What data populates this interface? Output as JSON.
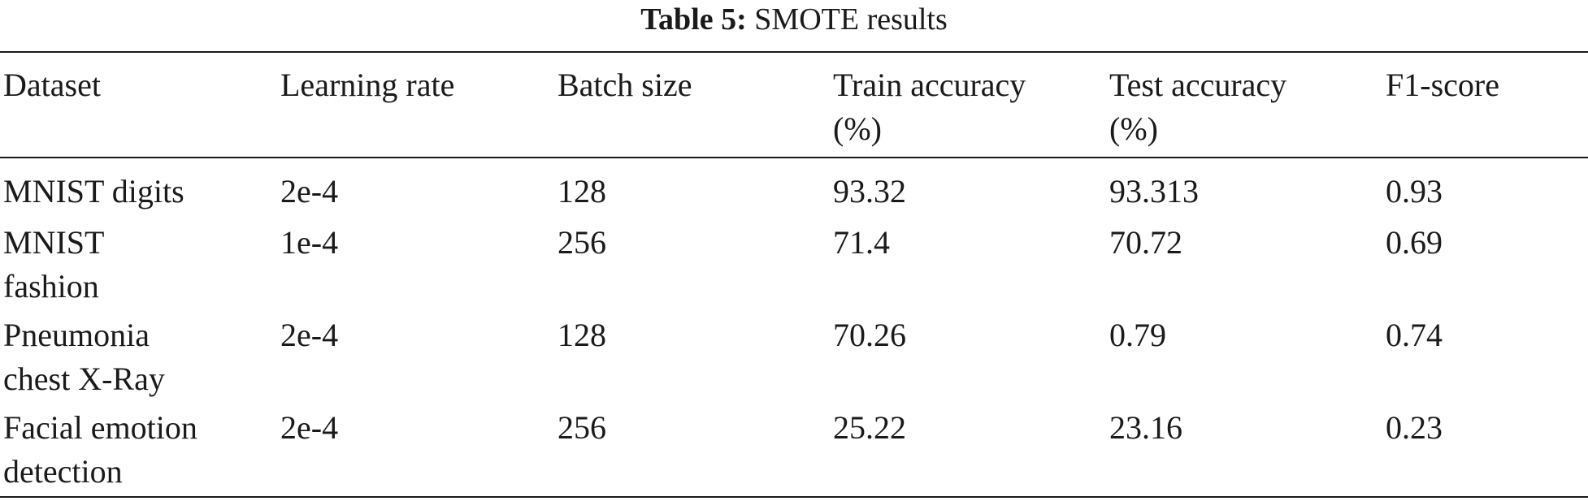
{
  "caption": {
    "label": "Table 5:",
    "title": "SMOTE results"
  },
  "table": {
    "headers": [
      "Dataset",
      "Learning rate",
      "Batch size",
      "Train accuracy\n(%)",
      "Test accuracy\n(%)",
      "F1-score"
    ],
    "rows": [
      [
        "MNIST digits",
        "2e-4",
        "128",
        "93.32",
        "93.313",
        "0.93"
      ],
      [
        "MNIST\nfashion",
        "1e-4",
        "256",
        "71.4",
        "70.72",
        "0.69"
      ],
      [
        "Pneumonia\nchest X-Ray",
        "2e-4",
        "128",
        "70.26",
        "0.79",
        "0.74"
      ],
      [
        "Facial emotion\ndetection",
        "2e-4",
        "256",
        "25.22",
        "23.16",
        "0.23"
      ]
    ]
  }
}
